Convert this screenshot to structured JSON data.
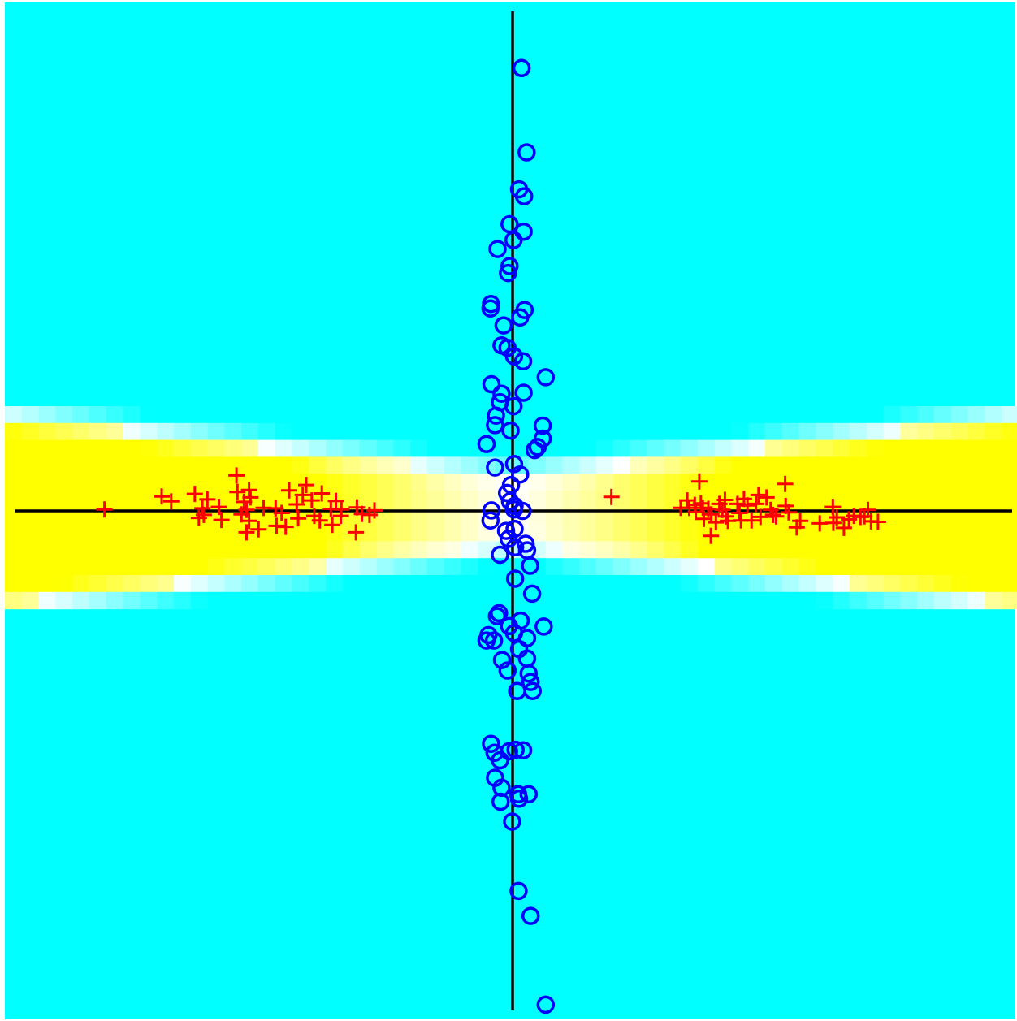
{
  "chart_data": {
    "type": "scatter",
    "title": "",
    "xlabel": "",
    "ylabel": "",
    "xlim": [
      -1,
      1
    ],
    "ylim": [
      -1,
      1
    ],
    "grid": false,
    "legend": "none",
    "background": {
      "kind": "decision-surface",
      "colors": {
        "region_low": "#00ffff",
        "boundary": "#ffffff",
        "region_high": "#ffff00"
      }
    },
    "axes_lines": {
      "x": 0,
      "y": 0,
      "color": "#000000"
    },
    "series": [
      {
        "marker": "circle",
        "color": "#0000ff",
        "points": [
          [
            0.018,
            0.888
          ],
          [
            0.028,
            0.719
          ],
          [
            0.013,
            0.645
          ],
          [
            0.023,
            0.631
          ],
          [
            -0.006,
            0.575
          ],
          [
            0.022,
            0.56
          ],
          [
            0.002,
            0.543
          ],
          [
            -0.03,
            0.525
          ],
          [
            -0.006,
            0.491
          ],
          [
            -0.009,
            0.477
          ],
          [
            -0.043,
            0.415
          ],
          [
            -0.044,
            0.406
          ],
          [
            0.024,
            0.403
          ],
          [
            0.015,
            0.388
          ],
          [
            -0.018,
            0.372
          ],
          [
            -0.022,
            0.332
          ],
          [
            -0.01,
            0.327
          ],
          [
            0.003,
            0.31
          ],
          [
            0.021,
            0.3
          ],
          [
            0.066,
            0.268
          ],
          [
            -0.042,
            0.254
          ],
          [
            -0.022,
            0.235
          ],
          [
            0.022,
            0.237
          ],
          [
            -0.025,
            0.218
          ],
          [
            0.002,
            0.21
          ],
          [
            -0.033,
            0.191
          ],
          [
            -0.035,
            0.172
          ],
          [
            -0.004,
            0.161
          ],
          [
            0.06,
            0.171
          ],
          [
            0.06,
            0.145
          ],
          [
            0.05,
            0.128
          ],
          [
            0.044,
            0.122
          ],
          [
            -0.052,
            0.134
          ],
          [
            0.003,
            0.094
          ],
          [
            -0.035,
            0.087
          ],
          [
            0.015,
            0.073
          ],
          [
            -0.003,
            0.052
          ],
          [
            -0.011,
            0.036
          ],
          [
            -0.005,
            0.019
          ],
          [
            0.004,
            0.01
          ],
          [
            -0.042,
            0.001
          ],
          [
            0.003,
            0.003
          ],
          [
            0.02,
            0.0
          ],
          [
            -0.044,
            -0.019
          ],
          [
            -0.013,
            -0.04
          ],
          [
            0.004,
            -0.036
          ],
          [
            -0.008,
            -0.056
          ],
          [
            0.026,
            -0.066
          ],
          [
            0.005,
            -0.073
          ],
          [
            0.029,
            -0.079
          ],
          [
            -0.025,
            -0.088
          ],
          [
            0.035,
            -0.11
          ],
          [
            0.005,
            -0.136
          ],
          [
            0.039,
            -0.166
          ],
          [
            -0.027,
            -0.205
          ],
          [
            -0.031,
            -0.211
          ],
          [
            0.016,
            -0.22
          ],
          [
            -0.007,
            -0.231
          ],
          [
            0.062,
            -0.232
          ],
          [
            0.003,
            -0.245
          ],
          [
            -0.048,
            -0.249
          ],
          [
            -0.052,
            -0.26
          ],
          [
            -0.037,
            -0.26
          ],
          [
            0.029,
            -0.255
          ],
          [
            0.013,
            -0.277
          ],
          [
            0.029,
            -0.296
          ],
          [
            -0.021,
            -0.299
          ],
          [
            -0.01,
            -0.32
          ],
          [
            0.032,
            -0.326
          ],
          [
            0.036,
            -0.343
          ],
          [
            0.04,
            -0.361
          ],
          [
            0.009,
            -0.361
          ],
          [
            -0.043,
            -0.467
          ],
          [
            -0.036,
            -0.485
          ],
          [
            -0.007,
            -0.482
          ],
          [
            0.006,
            -0.479
          ],
          [
            0.021,
            -0.48
          ],
          [
            -0.025,
            -0.5
          ],
          [
            -0.035,
            -0.535
          ],
          [
            -0.022,
            -0.555
          ],
          [
            0.011,
            -0.568
          ],
          [
            0.032,
            -0.568
          ],
          [
            0.013,
            -0.577
          ],
          [
            -0.024,
            -0.583
          ],
          [
            -0.001,
            -0.623
          ],
          [
            0.012,
            -0.762
          ],
          [
            0.036,
            -0.812
          ],
          [
            0.066,
            -0.99
          ]
        ]
      },
      {
        "marker": "plus",
        "color": "#ff0000",
        "points": [
          [
            -0.813,
            0.003
          ],
          [
            -0.699,
            0.029
          ],
          [
            -0.68,
            0.019
          ],
          [
            -0.633,
            0.034
          ],
          [
            -0.608,
            0.023
          ],
          [
            -0.585,
            0.008
          ],
          [
            -0.618,
            0.005
          ],
          [
            -0.615,
            -0.008
          ],
          [
            -0.625,
            -0.014
          ],
          [
            -0.58,
            -0.018
          ],
          [
            -0.55,
            0.071
          ],
          [
            -0.548,
            0.038
          ],
          [
            -0.525,
            0.042
          ],
          [
            -0.522,
            0.027
          ],
          [
            -0.535,
            0.018
          ],
          [
            -0.53,
            0.002
          ],
          [
            -0.54,
            -0.007
          ],
          [
            -0.525,
            -0.02
          ],
          [
            -0.53,
            -0.043
          ],
          [
            -0.506,
            -0.037
          ],
          [
            -0.496,
            0.006
          ],
          [
            -0.472,
            0.005
          ],
          [
            -0.46,
            -0.004
          ],
          [
            -0.47,
            -0.03
          ],
          [
            -0.452,
            -0.032
          ],
          [
            -0.445,
            0.041
          ],
          [
            -0.43,
            0.013
          ],
          [
            -0.418,
            0.032
          ],
          [
            -0.427,
            -0.015
          ],
          [
            -0.411,
            0.052
          ],
          [
            -0.4,
            0.021
          ],
          [
            -0.395,
            -0.01
          ],
          [
            -0.38,
            0.035
          ],
          [
            -0.384,
            -0.019
          ],
          [
            -0.362,
            0.004
          ],
          [
            -0.359,
            -0.028
          ],
          [
            -0.352,
            0.02
          ],
          [
            -0.342,
            -0.01
          ],
          [
            -0.341,
            0.003
          ],
          [
            -0.312,
            -0.043
          ],
          [
            -0.31,
            0.007
          ],
          [
            -0.3,
            -0.006
          ],
          [
            -0.285,
            -0.008
          ],
          [
            -0.275,
            0.001
          ],
          [
            0.197,
            0.028
          ],
          [
            0.335,
            0.006
          ],
          [
            0.372,
            0.059
          ],
          [
            0.348,
            0.021
          ],
          [
            0.352,
            0.006
          ],
          [
            0.363,
            0.012
          ],
          [
            0.365,
            -0.002
          ],
          [
            0.375,
            0.015
          ],
          [
            0.379,
            0.006
          ],
          [
            0.39,
            0.004
          ],
          [
            0.396,
            -0.007
          ],
          [
            0.381,
            -0.016
          ],
          [
            0.405,
            -0.023
          ],
          [
            0.395,
            -0.05
          ],
          [
            0.412,
            0.014
          ],
          [
            0.418,
            0.002
          ],
          [
            0.423,
            0.022
          ],
          [
            0.425,
            -0.011
          ],
          [
            0.429,
            -0.02
          ],
          [
            0.448,
            0.014
          ],
          [
            0.452,
            -0.004
          ],
          [
            0.455,
            -0.019
          ],
          [
            0.461,
            0.024
          ],
          [
            0.468,
            0.011
          ],
          [
            0.476,
            -0.019
          ],
          [
            0.485,
            0.014
          ],
          [
            0.49,
            0.032
          ],
          [
            0.494,
            -0.012
          ],
          [
            0.506,
            0.027
          ],
          [
            0.514,
            0.002
          ],
          [
            0.519,
            -0.008
          ],
          [
            0.525,
            -0.011
          ],
          [
            0.543,
            0.054
          ],
          [
            0.544,
            0.01
          ],
          [
            0.55,
            -0.003
          ],
          [
            0.566,
            -0.033
          ],
          [
            0.573,
            -0.02
          ],
          [
            0.612,
            -0.025
          ],
          [
            0.639,
            -0.024
          ],
          [
            0.638,
            0.008
          ],
          [
            0.646,
            -0.013
          ],
          [
            0.66,
            -0.034
          ],
          [
            0.67,
            -0.017
          ],
          [
            0.68,
            -0.01
          ],
          [
            0.693,
            -0.012
          ],
          [
            0.714,
            -0.021
          ],
          [
            0.701,
            -0.011
          ],
          [
            0.708,
            0.002
          ],
          [
            0.728,
            -0.022
          ]
        ]
      }
    ]
  }
}
